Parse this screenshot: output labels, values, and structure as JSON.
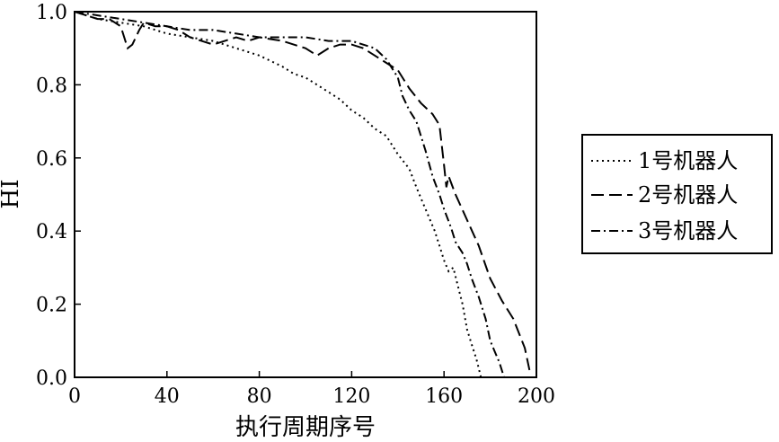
{
  "chart_data": {
    "type": "line",
    "title": "",
    "xlabel": "执行周期序号",
    "ylabel": "HI",
    "xlim": [
      0,
      200
    ],
    "ylim": [
      0,
      1.0
    ],
    "xticks": [
      "0",
      "40",
      "80",
      "120",
      "160",
      "200"
    ],
    "yticks": [
      "0.0",
      "0.2",
      "0.4",
      "0.6",
      "0.8",
      "1.0"
    ],
    "grid": false,
    "legend_position": "right",
    "series": [
      {
        "name": "1号机器人",
        "style": "dotted",
        "x": [
          0,
          10,
          20,
          30,
          40,
          50,
          60,
          70,
          80,
          90,
          95,
          100,
          105,
          110,
          115,
          120,
          125,
          130,
          135,
          140,
          145,
          148,
          152,
          156,
          158,
          160,
          162,
          164,
          166,
          168,
          170,
          172,
          174,
          176
        ],
        "y": [
          1.0,
          0.98,
          0.97,
          0.96,
          0.94,
          0.93,
          0.92,
          0.9,
          0.88,
          0.85,
          0.83,
          0.82,
          0.8,
          0.78,
          0.76,
          0.73,
          0.71,
          0.68,
          0.66,
          0.61,
          0.57,
          0.52,
          0.46,
          0.4,
          0.36,
          0.32,
          0.29,
          0.3,
          0.25,
          0.2,
          0.13,
          0.09,
          0.05,
          0.0
        ]
      },
      {
        "name": "2号机器人",
        "style": "dashed",
        "x": [
          0,
          5,
          10,
          15,
          20,
          23,
          25,
          28,
          30,
          35,
          40,
          45,
          50,
          55,
          60,
          65,
          70,
          75,
          80,
          90,
          100,
          105,
          110,
          115,
          120,
          125,
          130,
          135,
          140,
          145,
          150,
          155,
          158,
          160,
          161,
          162,
          165,
          170,
          175,
          180,
          185,
          190,
          195,
          197
        ],
        "y": [
          1.0,
          0.99,
          0.98,
          0.98,
          0.96,
          0.9,
          0.91,
          0.95,
          0.97,
          0.96,
          0.96,
          0.95,
          0.93,
          0.92,
          0.91,
          0.92,
          0.93,
          0.92,
          0.93,
          0.92,
          0.9,
          0.88,
          0.9,
          0.91,
          0.91,
          0.9,
          0.88,
          0.86,
          0.84,
          0.79,
          0.75,
          0.72,
          0.69,
          0.58,
          0.52,
          0.55,
          0.5,
          0.43,
          0.36,
          0.27,
          0.21,
          0.16,
          0.08,
          0.02
        ]
      },
      {
        "name": "3号机器人",
        "style": "dashdot",
        "x": [
          0,
          10,
          20,
          30,
          40,
          50,
          60,
          70,
          80,
          90,
          100,
          110,
          120,
          130,
          135,
          140,
          142,
          145,
          148,
          150,
          152,
          155,
          158,
          160,
          163,
          165,
          168,
          170,
          172,
          175,
          178,
          180,
          182,
          184,
          186
        ],
        "y": [
          1.0,
          0.99,
          0.98,
          0.97,
          0.96,
          0.95,
          0.95,
          0.94,
          0.93,
          0.93,
          0.93,
          0.92,
          0.92,
          0.9,
          0.87,
          0.82,
          0.77,
          0.73,
          0.7,
          0.66,
          0.62,
          0.55,
          0.5,
          0.46,
          0.41,
          0.37,
          0.34,
          0.31,
          0.27,
          0.22,
          0.16,
          0.1,
          0.07,
          0.04,
          0.0
        ]
      }
    ]
  }
}
